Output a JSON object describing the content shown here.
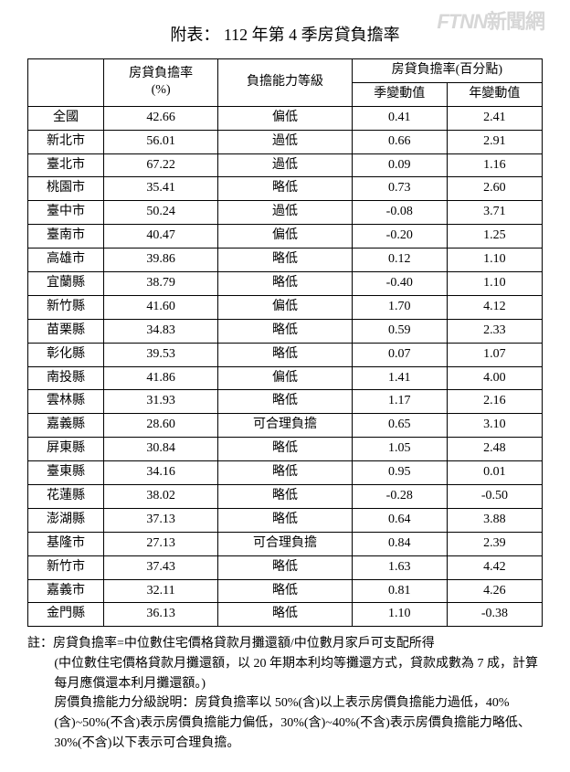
{
  "watermark": {
    "en": "FTNN",
    "cn": "新聞網"
  },
  "title": "附表： 112 年第 4 季房貸負擔率",
  "table": {
    "type": "table",
    "background_color": "#ffffff",
    "border_color": "#000000",
    "font_size": 14,
    "header": {
      "col_region_blank": "",
      "col_rate": "房貸負擔率\n(%)",
      "col_level": "負擔能力等級",
      "col_change_group": "房貸負擔率(百分點)",
      "col_q_change": "季變動值",
      "col_y_change": "年變動值"
    },
    "rows": [
      {
        "region": "全國",
        "rate": "42.66",
        "level": "偏低",
        "q": "0.41",
        "y": "2.41"
      },
      {
        "region": "新北市",
        "rate": "56.01",
        "level": "過低",
        "q": "0.66",
        "y": "2.91"
      },
      {
        "region": "臺北市",
        "rate": "67.22",
        "level": "過低",
        "q": "0.09",
        "y": "1.16"
      },
      {
        "region": "桃園市",
        "rate": "35.41",
        "level": "略低",
        "q": "0.73",
        "y": "2.60"
      },
      {
        "region": "臺中市",
        "rate": "50.24",
        "level": "過低",
        "q": "-0.08",
        "y": "3.71"
      },
      {
        "region": "臺南市",
        "rate": "40.47",
        "level": "偏低",
        "q": "-0.20",
        "y": "1.25"
      },
      {
        "region": "高雄市",
        "rate": "39.86",
        "level": "略低",
        "q": "0.12",
        "y": "1.10"
      },
      {
        "region": "宜蘭縣",
        "rate": "38.79",
        "level": "略低",
        "q": "-0.40",
        "y": "1.10"
      },
      {
        "region": "新竹縣",
        "rate": "41.60",
        "level": "偏低",
        "q": "1.70",
        "y": "4.12"
      },
      {
        "region": "苗栗縣",
        "rate": "34.83",
        "level": "略低",
        "q": "0.59",
        "y": "2.33"
      },
      {
        "region": "彰化縣",
        "rate": "39.53",
        "level": "略低",
        "q": "0.07",
        "y": "1.07"
      },
      {
        "region": "南投縣",
        "rate": "41.86",
        "level": "偏低",
        "q": "1.41",
        "y": "4.00"
      },
      {
        "region": "雲林縣",
        "rate": "31.93",
        "level": "略低",
        "q": "1.17",
        "y": "2.16"
      },
      {
        "region": "嘉義縣",
        "rate": "28.60",
        "level": "可合理負擔",
        "q": "0.65",
        "y": "3.10"
      },
      {
        "region": "屏東縣",
        "rate": "30.84",
        "level": "略低",
        "q": "1.05",
        "y": "2.48"
      },
      {
        "region": "臺東縣",
        "rate": "34.16",
        "level": "略低",
        "q": "0.95",
        "y": "0.01"
      },
      {
        "region": "花蓮縣",
        "rate": "38.02",
        "level": "略低",
        "q": "-0.28",
        "y": "-0.50"
      },
      {
        "region": "澎湖縣",
        "rate": "37.13",
        "level": "略低",
        "q": "0.64",
        "y": "3.88"
      },
      {
        "region": "基隆市",
        "rate": "27.13",
        "level": "可合理負擔",
        "q": "0.84",
        "y": "2.39"
      },
      {
        "region": "新竹市",
        "rate": "37.43",
        "level": "略低",
        "q": "1.63",
        "y": "4.42"
      },
      {
        "region": "嘉義市",
        "rate": "32.11",
        "level": "略低",
        "q": "0.81",
        "y": "4.26"
      },
      {
        "region": "金門縣",
        "rate": "36.13",
        "level": "略低",
        "q": "1.10",
        "y": "-0.38"
      }
    ]
  },
  "notes": {
    "line1": "註：房貸負擔率=中位數住宅價格貸款月攤還額/中位數月家戶可支配所得",
    "line2": "(中位數住宅價格貸款月攤還額，以 20 年期本利均等攤還方式，貸款成數為 7 成，計算每月應償還本利月攤還額。)",
    "line3": "房價負擔能力分級說明：房貸負擔率以 50%(含)以上表示房價負擔能力過低，40%(含)~50%(不含)表示房價負擔能力偏低，30%(含)~40%(不含)表示房價負擔能力略低、30%(不含)以下表示可合理負擔。"
  }
}
